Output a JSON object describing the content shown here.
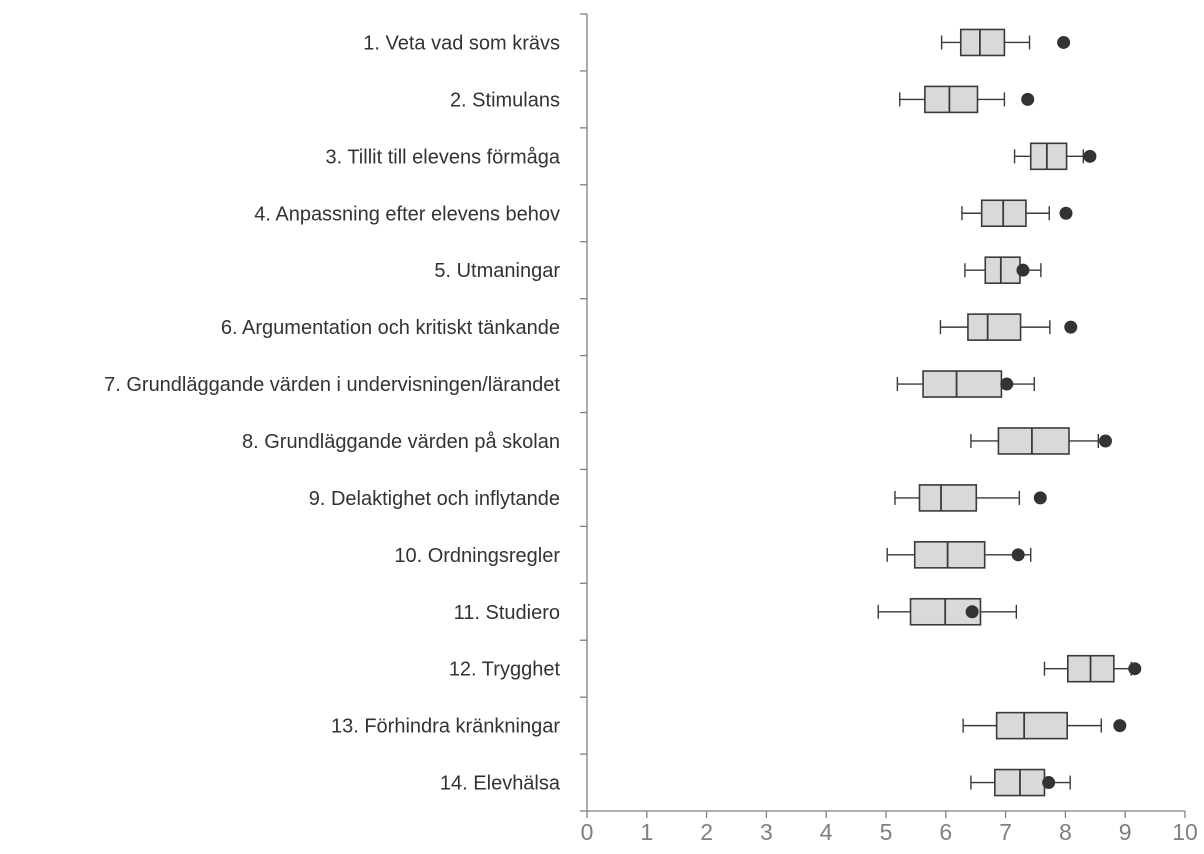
{
  "chart_data": {
    "type": "boxplot",
    "orientation": "horizontal",
    "xlim": [
      0,
      10
    ],
    "x_ticks": [
      "0",
      "1",
      "2",
      "3",
      "4",
      "5",
      "6",
      "7",
      "8",
      "9",
      "10"
    ],
    "grid": false,
    "title": "",
    "xlabel": "",
    "ylabel": "",
    "colors": {
      "box_fill": "#d9d9d9",
      "box_stroke": "#3a3a3a",
      "marker": "#333333",
      "axis": "#7f7f7f",
      "tick_text": "#808080",
      "label_text": "#333333"
    },
    "categories": [
      {
        "label": "1. Veta vad som krävs",
        "min": 5.93,
        "q1": 6.25,
        "median": 6.57,
        "q3": 6.98,
        "max": 7.4,
        "marker": 7.97
      },
      {
        "label": "2. Stimulans",
        "min": 5.23,
        "q1": 5.65,
        "median": 6.06,
        "q3": 6.53,
        "max": 6.98,
        "marker": 7.37
      },
      {
        "label": "3. Tillit till elevens förmåga",
        "min": 7.15,
        "q1": 7.42,
        "median": 7.69,
        "q3": 8.02,
        "max": 8.3,
        "marker": 8.41
      },
      {
        "label": "4. Anpassning efter elevens behov",
        "min": 6.27,
        "q1": 6.6,
        "median": 6.96,
        "q3": 7.34,
        "max": 7.73,
        "marker": 8.01
      },
      {
        "label": "5. Utmaningar",
        "min": 6.32,
        "q1": 6.66,
        "median": 6.92,
        "q3": 7.24,
        "max": 7.59,
        "marker": 7.29
      },
      {
        "label": "6. Argumentation och kritiskt tänkande",
        "min": 5.91,
        "q1": 6.37,
        "median": 6.7,
        "q3": 7.25,
        "max": 7.74,
        "marker": 8.09
      },
      {
        "label": "7. Grundläggande värden i undervisningen/lärandet",
        "min": 5.19,
        "q1": 5.62,
        "median": 6.18,
        "q3": 6.93,
        "max": 7.48,
        "marker": 7.02
      },
      {
        "label": "8. Grundläggande värden på skolan",
        "min": 6.42,
        "q1": 6.88,
        "median": 7.44,
        "q3": 8.06,
        "max": 8.55,
        "marker": 8.67
      },
      {
        "label": "9. Delaktighet och inflytande",
        "min": 5.15,
        "q1": 5.56,
        "median": 5.92,
        "q3": 6.51,
        "max": 7.23,
        "marker": 7.58
      },
      {
        "label": "10. Ordningsregler",
        "min": 5.02,
        "q1": 5.48,
        "median": 6.03,
        "q3": 6.65,
        "max": 7.42,
        "marker": 7.21
      },
      {
        "label": "11. Studiero",
        "min": 4.87,
        "q1": 5.41,
        "median": 5.99,
        "q3": 6.58,
        "max": 7.18,
        "marker": 6.44
      },
      {
        "label": "12. Trygghet",
        "min": 7.65,
        "q1": 8.04,
        "median": 8.42,
        "q3": 8.81,
        "max": 9.1,
        "marker": 9.16
      },
      {
        "label": "13. Förhindra kränkningar",
        "min": 6.29,
        "q1": 6.85,
        "median": 7.31,
        "q3": 8.03,
        "max": 8.6,
        "marker": 8.91
      },
      {
        "label": "14. Elevhälsa",
        "min": 6.42,
        "q1": 6.82,
        "median": 7.24,
        "q3": 7.65,
        "max": 8.08,
        "marker": 7.72
      }
    ]
  }
}
